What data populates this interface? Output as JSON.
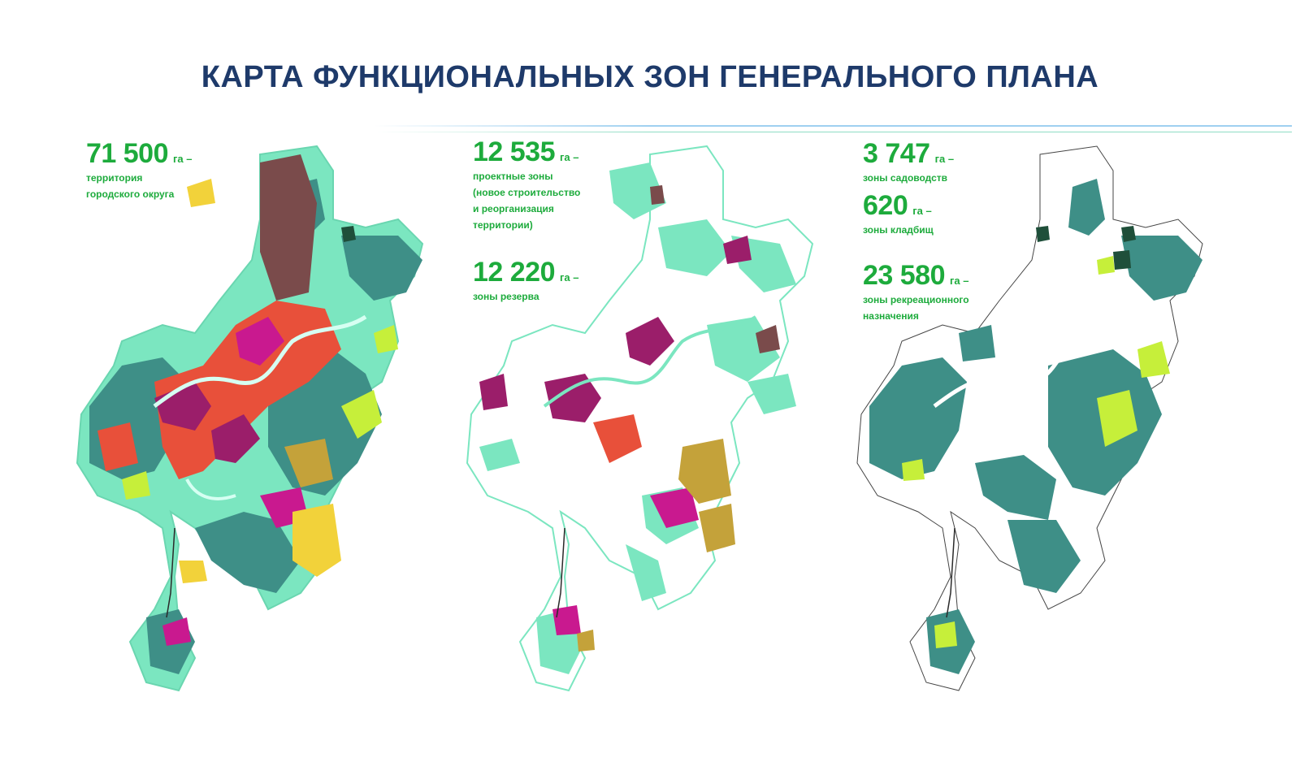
{
  "title": "КАРТА ФУНКЦИОНАЛЬНЫХ ЗОН ГЕНЕРАЛЬНОГО ПЛАНА",
  "colors": {
    "title": "#1e3a6a",
    "accent_green": "#1dab3c",
    "forest": "#3e8f87",
    "recreation": "#7be6c0",
    "residential": "#e8503a",
    "business": "#9b1e6a",
    "public": "#c9198f",
    "industrial": "#7a4b4b",
    "gardening": "#c6ef3a",
    "agricultural": "#f2d23a",
    "planned": "#c4a23a",
    "cemetery": "#1f4f3a"
  },
  "panels": [
    {
      "stats": [
        {
          "value": "71 500",
          "unit": "га –",
          "description": "территория\nгородского округа"
        }
      ]
    },
    {
      "stats": [
        {
          "value": "12 535",
          "unit": "га –",
          "description": "проектные зоны\n(новое строительство\nи реорганизация\nтерритории)"
        },
        {
          "value": "12 220",
          "unit": "га –",
          "description": "зоны резерва"
        }
      ]
    },
    {
      "stats": [
        {
          "value": "3 747",
          "unit": "га –",
          "description": "зоны садоводств"
        },
        {
          "value": "620",
          "unit": "га –",
          "description": "зоны кладбищ"
        },
        {
          "value": "23 580",
          "unit": "га –",
          "description": "зоны рекреационного\nназначения"
        }
      ]
    }
  ]
}
